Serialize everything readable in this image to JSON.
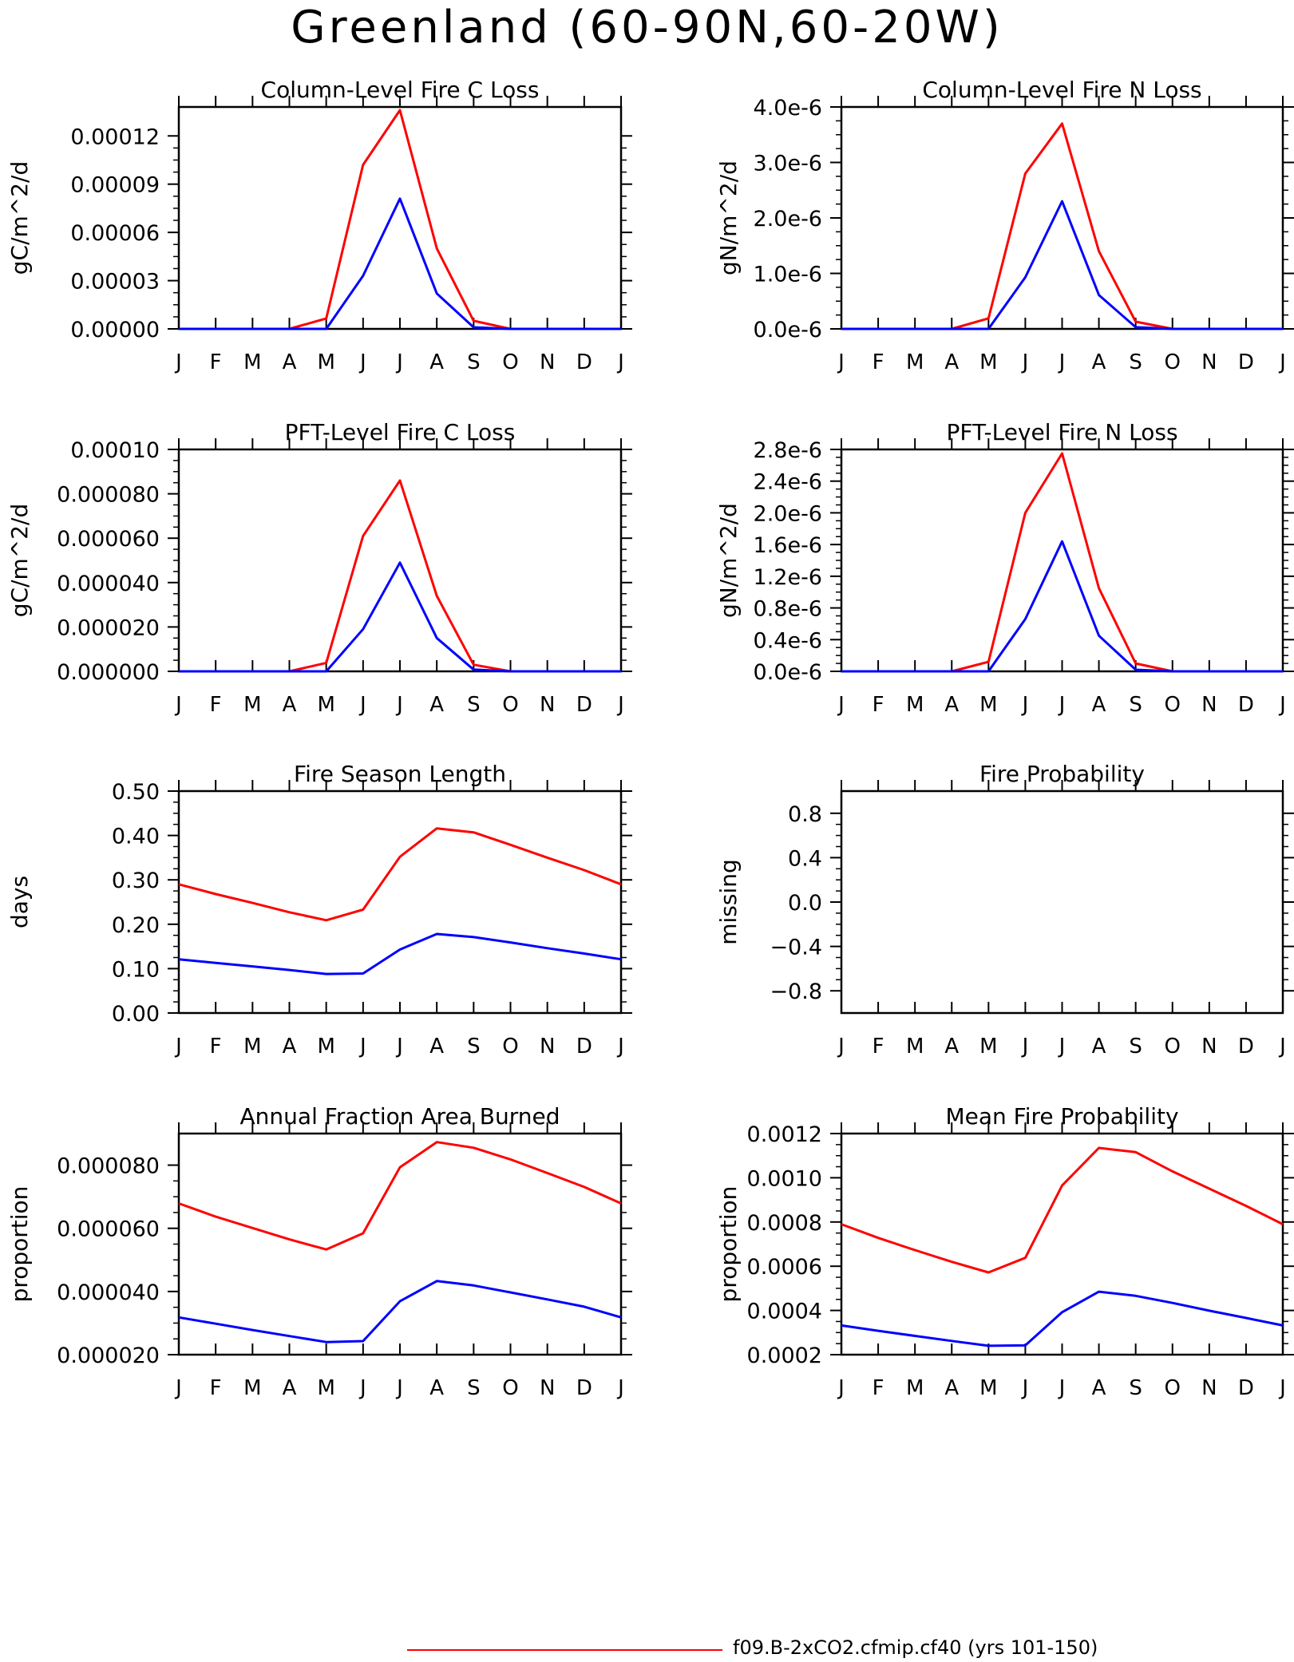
{
  "page_title": "Greenland (60-90N,60-20W)",
  "legend": {
    "label": "f09.B-2xCO2.cfmip.cf40 (yrs 101-150)",
    "color": "#ff0000"
  },
  "colors": {
    "series_red": "#ff0000",
    "series_blue": "#0000ff",
    "axis": "#000000"
  },
  "chart_data": [
    {
      "type": "line",
      "title": "Column-Level Fire C Loss",
      "ylabel": "gC/m^2/d",
      "xticks": [
        "J",
        "F",
        "M",
        "A",
        "M",
        "J",
        "J",
        "A",
        "S",
        "O",
        "N",
        "D",
        "J"
      ],
      "ylim": [
        0,
        0.000138
      ],
      "yticks": [
        "0.00000",
        "0.00003",
        "0.00006",
        "0.00009",
        "0.00012"
      ],
      "ytick_values": [
        0,
        3e-05,
        6e-05,
        9e-05,
        0.00012
      ],
      "series": [
        {
          "color": "#ff0000",
          "values": [
            0,
            0,
            0,
            0,
            6.5e-06,
            0.000102,
            0.000136,
            5e-05,
            5e-06,
            0,
            0,
            0,
            0
          ]
        },
        {
          "color": "#0000ff",
          "values": [
            0,
            0,
            0,
            0,
            0,
            3.3e-05,
            8.1e-05,
            2.2e-05,
            1e-06,
            0,
            0,
            0,
            0
          ]
        }
      ]
    },
    {
      "type": "line",
      "title": "Column-Level Fire N Loss",
      "ylabel": "gN/m^2/d",
      "xticks": [
        "J",
        "F",
        "M",
        "A",
        "M",
        "J",
        "J",
        "A",
        "S",
        "O",
        "N",
        "D",
        "J"
      ],
      "ylim": [
        0,
        4e-06
      ],
      "yticks": [
        "0.0e-6",
        "1.0e-6",
        "2.0e-6",
        "3.0e-6",
        "4.0e-6"
      ],
      "ytick_values": [
        0,
        1e-06,
        2e-06,
        3e-06,
        4e-06
      ],
      "series": [
        {
          "color": "#ff0000",
          "values": [
            0,
            0,
            0,
            0,
            1.9e-07,
            2.8e-06,
            3.7e-06,
            1.4e-06,
            1.3e-07,
            0,
            0,
            0,
            0
          ]
        },
        {
          "color": "#0000ff",
          "values": [
            0,
            0,
            0,
            0,
            0,
            9.3e-07,
            2.3e-06,
            6.1e-07,
            3e-08,
            0,
            0,
            0,
            0
          ]
        }
      ]
    },
    {
      "type": "line",
      "title": "PFT-Level Fire C Loss",
      "ylabel": "gC/m^2/d",
      "xticks": [
        "J",
        "F",
        "M",
        "A",
        "M",
        "J",
        "J",
        "A",
        "S",
        "O",
        "N",
        "D",
        "J"
      ],
      "ylim": [
        0,
        0.0001
      ],
      "yticks": [
        "0.000000",
        "0.000020",
        "0.000040",
        "0.000060",
        "0.000080",
        "0.00010"
      ],
      "ytick_values": [
        0,
        2e-05,
        4e-05,
        6e-05,
        8e-05,
        0.0001
      ],
      "series": [
        {
          "color": "#ff0000",
          "values": [
            0,
            0,
            0,
            0,
            3.8e-06,
            6.1e-05,
            8.6e-05,
            3.4e-05,
            3e-06,
            0,
            0,
            0,
            0
          ]
        },
        {
          "color": "#0000ff",
          "values": [
            0,
            0,
            0,
            0,
            0,
            1.9e-05,
            4.9e-05,
            1.5e-05,
            8e-07,
            0,
            0,
            0,
            0
          ]
        }
      ]
    },
    {
      "type": "line",
      "title": "PFT-Level Fire N Loss",
      "ylabel": "gN/m^2/d",
      "xticks": [
        "J",
        "F",
        "M",
        "A",
        "M",
        "J",
        "J",
        "A",
        "S",
        "O",
        "N",
        "D",
        "J"
      ],
      "ylim": [
        0,
        2.8e-06
      ],
      "yticks": [
        "0.0e-6",
        "0.4e-6",
        "0.8e-6",
        "1.2e-6",
        "1.6e-6",
        "2.0e-6",
        "2.4e-6",
        "2.8e-6"
      ],
      "ytick_values": [
        0,
        4e-07,
        8e-07,
        1.2e-06,
        1.6e-06,
        2e-06,
        2.4e-06,
        2.8e-06
      ],
      "series": [
        {
          "color": "#ff0000",
          "values": [
            0,
            0,
            0,
            0,
            1.2e-07,
            2e-06,
            2.75e-06,
            1.05e-06,
            1e-07,
            0,
            0,
            0,
            0
          ]
        },
        {
          "color": "#0000ff",
          "values": [
            0,
            0,
            0,
            0,
            0,
            6.6e-07,
            1.64e-06,
            4.5e-07,
            2e-08,
            0,
            0,
            0,
            0
          ]
        }
      ]
    },
    {
      "type": "line",
      "title": "Fire Season Length",
      "ylabel": "days",
      "xticks": [
        "J",
        "F",
        "M",
        "A",
        "M",
        "J",
        "J",
        "A",
        "S",
        "O",
        "N",
        "D",
        "J"
      ],
      "ylim": [
        0,
        0.5
      ],
      "yticks": [
        "0.00",
        "0.10",
        "0.20",
        "0.30",
        "0.40",
        "0.50"
      ],
      "ytick_values": [
        0,
        0.1,
        0.2,
        0.3,
        0.4,
        0.5
      ],
      "series": [
        {
          "color": "#ff0000",
          "values": [
            0.29,
            0.268,
            0.248,
            0.227,
            0.209,
            0.233,
            0.352,
            0.416,
            0.407,
            0.379,
            0.35,
            0.322,
            0.29
          ]
        },
        {
          "color": "#0000ff",
          "values": [
            0.121,
            0.113,
            0.105,
            0.097,
            0.088,
            0.089,
            0.143,
            0.178,
            0.171,
            0.159,
            0.146,
            0.134,
            0.121
          ]
        }
      ]
    },
    {
      "type": "line",
      "title": "Fire Probability",
      "ylabel": "missing",
      "xticks": [
        "J",
        "F",
        "M",
        "A",
        "M",
        "J",
        "J",
        "A",
        "S",
        "O",
        "N",
        "D",
        "J"
      ],
      "ylim": [
        -1,
        1
      ],
      "yticks": [
        "−0.8",
        "−0.4",
        "0.0",
        "0.4",
        "0.8"
      ],
      "ytick_values": [
        -0.8,
        -0.4,
        0,
        0.4,
        0.8
      ],
      "series": []
    },
    {
      "type": "line",
      "title": "Annual Fraction Area Burned",
      "ylabel": "proportion",
      "xticks": [
        "J",
        "F",
        "M",
        "A",
        "M",
        "J",
        "J",
        "A",
        "S",
        "O",
        "N",
        "D",
        "J"
      ],
      "ylim": [
        2e-05,
        9e-05
      ],
      "yticks": [
        "0.000020",
        "0.000040",
        "0.000060",
        "0.000080"
      ],
      "ytick_values": [
        2e-05,
        4e-05,
        6e-05,
        8e-05
      ],
      "series": [
        {
          "color": "#ff0000",
          "values": [
            6.79e-05,
            6.37e-05,
            6.01e-05,
            5.65e-05,
            5.33e-05,
            5.84e-05,
            7.93e-05,
            8.73e-05,
            8.55e-05,
            8.18e-05,
            7.75e-05,
            7.31e-05,
            6.79e-05
          ]
        },
        {
          "color": "#0000ff",
          "values": [
            3.18e-05,
            2.98e-05,
            2.78e-05,
            2.59e-05,
            2.4e-05,
            2.43e-05,
            3.69e-05,
            4.33e-05,
            4.19e-05,
            3.97e-05,
            3.75e-05,
            3.52e-05,
            3.18e-05
          ]
        }
      ]
    },
    {
      "type": "line",
      "title": "Mean Fire Probability",
      "ylabel": "proportion",
      "xticks": [
        "J",
        "F",
        "M",
        "A",
        "M",
        "J",
        "J",
        "A",
        "S",
        "O",
        "N",
        "D",
        "J"
      ],
      "ylim": [
        0.0002,
        0.0012
      ],
      "yticks": [
        "0.0002",
        "0.0004",
        "0.0006",
        "0.0008",
        "0.0010",
        "0.0012"
      ],
      "ytick_values": [
        0.0002,
        0.0004,
        0.0006,
        0.0008,
        0.001,
        0.0012
      ],
      "series": [
        {
          "color": "#ff0000",
          "values": [
            0.00079,
            0.000728,
            0.000673,
            0.00062,
            0.000572,
            0.000638,
            0.000965,
            0.001135,
            0.001116,
            0.001029,
            0.000951,
            0.000873,
            0.00079
          ]
        },
        {
          "color": "#0000ff",
          "values": [
            0.000332,
            0.000308,
            0.000285,
            0.000262,
            0.00024,
            0.000242,
            0.000392,
            0.000485,
            0.000466,
            0.000434,
            0.000399,
            0.000366,
            0.000332
          ]
        }
      ]
    }
  ]
}
